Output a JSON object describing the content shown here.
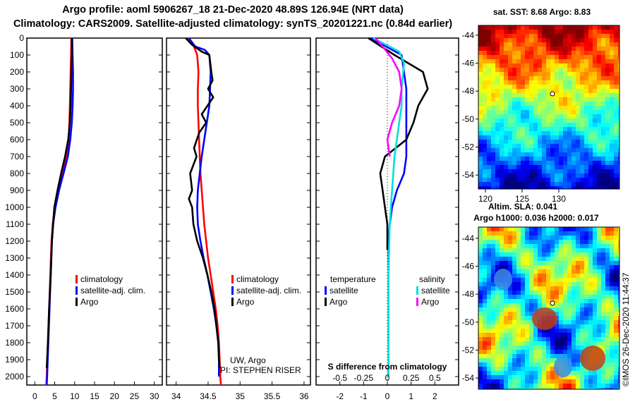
{
  "header": {
    "line1": "Argo profile: aoml 5906267_18 21-Dec-2020 48.89S 126.94E (NRT data)",
    "line2": "Climatology: CARS2009. Satellite-adjusted climatology: synTS_20201221.nc (0.84d earlier)"
  },
  "chart_data": [
    {
      "type": "line",
      "name": "temperature-profile",
      "xlabel": "",
      "ylabel": "",
      "xlim": [
        -2,
        32
      ],
      "ylim": [
        2050,
        0
      ],
      "y_inverted": true,
      "xticks": [
        0,
        5,
        10,
        15,
        20,
        25,
        30
      ],
      "yticks": [
        0,
        100,
        200,
        300,
        400,
        500,
        600,
        700,
        800,
        900,
        1000,
        1100,
        1200,
        1300,
        1400,
        1500,
        1600,
        1700,
        1800,
        1900,
        2000
      ],
      "legend": {
        "position": "lower-right",
        "entries": [
          "climatology",
          "satellite-adj. clim.",
          "Argo"
        ]
      },
      "series": [
        {
          "name": "climatology",
          "color": "#ff0000",
          "points": [
            [
              9.2,
              0
            ],
            [
              9.1,
              100
            ],
            [
              9.0,
              200
            ],
            [
              8.9,
              300
            ],
            [
              8.8,
              400
            ],
            [
              8.7,
              500
            ],
            [
              8.5,
              600
            ],
            [
              7.9,
              700
            ],
            [
              6.9,
              800
            ],
            [
              5.8,
              900
            ],
            [
              5.0,
              1000
            ],
            [
              4.5,
              1100
            ],
            [
              4.2,
              1200
            ],
            [
              3.9,
              1400
            ],
            [
              3.6,
              1600
            ],
            [
              3.3,
              1800
            ],
            [
              3.0,
              2000
            ],
            [
              2.9,
              2050
            ]
          ]
        },
        {
          "name": "satellite-adj. clim.",
          "color": "#0000ff",
          "points": [
            [
              9.4,
              0
            ],
            [
              9.5,
              100
            ],
            [
              9.6,
              200
            ],
            [
              9.6,
              300
            ],
            [
              9.5,
              400
            ],
            [
              9.3,
              500
            ],
            [
              8.9,
              600
            ],
            [
              8.3,
              700
            ],
            [
              7.2,
              800
            ],
            [
              6.1,
              900
            ],
            [
              5.2,
              1000
            ],
            [
              4.6,
              1100
            ],
            [
              4.3,
              1200
            ],
            [
              4.0,
              1400
            ],
            [
              3.7,
              1600
            ],
            [
              3.4,
              1800
            ],
            [
              3.1,
              2000
            ],
            [
              3.0,
              2050
            ]
          ]
        },
        {
          "name": "Argo",
          "color": "#000000",
          "points": [
            [
              9.3,
              0
            ],
            [
              9.3,
              100
            ],
            [
              9.2,
              200
            ],
            [
              9.1,
              300
            ],
            [
              9.0,
              400
            ],
            [
              8.8,
              500
            ],
            [
              8.4,
              600
            ],
            [
              7.6,
              700
            ],
            [
              6.6,
              800
            ],
            [
              5.7,
              900
            ],
            [
              4.9,
              1000
            ],
            [
              4.6,
              1100
            ],
            [
              4.3,
              1200
            ],
            [
              4.0,
              1400
            ],
            [
              3.6,
              1600
            ],
            [
              3.3,
              1800
            ],
            [
              3.0,
              1950
            ]
          ]
        }
      ]
    },
    {
      "type": "line",
      "name": "salinity-profile",
      "xlabel": "",
      "ylabel": "",
      "xlim": [
        33.85,
        36.1
      ],
      "ylim": [
        2050,
        0
      ],
      "y_inverted": true,
      "xticks": [
        34,
        34.5,
        35,
        35.5,
        36
      ],
      "legend": {
        "position": "lower-right",
        "entries": [
          "climatology",
          "satellite-adj. clim.",
          "Argo"
        ]
      },
      "annotations": [
        "UW, Argo",
        "PI: STEPHEN RISER"
      ],
      "series": [
        {
          "name": "climatology",
          "color": "#ff0000",
          "points": [
            [
              34.18,
              0
            ],
            [
              34.28,
              50
            ],
            [
              34.33,
              100
            ],
            [
              34.35,
              200
            ],
            [
              34.34,
              300
            ],
            [
              34.34,
              400
            ],
            [
              34.35,
              500
            ],
            [
              34.36,
              600
            ],
            [
              34.37,
              700
            ],
            [
              34.38,
              800
            ],
            [
              34.4,
              900
            ],
            [
              34.42,
              1000
            ],
            [
              34.44,
              1100
            ],
            [
              34.47,
              1200
            ],
            [
              34.5,
              1300
            ],
            [
              34.54,
              1400
            ],
            [
              34.58,
              1500
            ],
            [
              34.62,
              1600
            ],
            [
              34.65,
              1700
            ],
            [
              34.67,
              1800
            ],
            [
              34.68,
              1900
            ],
            [
              34.69,
              2000
            ],
            [
              34.7,
              2050
            ]
          ]
        },
        {
          "name": "satellite-adj. clim.",
          "color": "#0000ff",
          "points": [
            [
              34.2,
              0
            ],
            [
              34.3,
              50
            ],
            [
              34.45,
              70
            ],
            [
              34.52,
              100
            ],
            [
              34.54,
              200
            ],
            [
              34.53,
              300
            ],
            [
              34.52,
              400
            ],
            [
              34.48,
              500
            ],
            [
              34.44,
              600
            ],
            [
              34.4,
              700
            ],
            [
              34.37,
              800
            ],
            [
              34.34,
              900
            ],
            [
              34.33,
              1000
            ],
            [
              34.34,
              1100
            ],
            [
              34.38,
              1200
            ],
            [
              34.43,
              1300
            ],
            [
              34.49,
              1400
            ],
            [
              34.54,
              1500
            ],
            [
              34.59,
              1600
            ],
            [
              34.63,
              1700
            ],
            [
              34.66,
              1800
            ],
            [
              34.67,
              1900
            ],
            [
              34.67,
              2000
            ]
          ]
        },
        {
          "name": "Argo",
          "color": "#000000",
          "points": [
            [
              34.15,
              0
            ],
            [
              34.25,
              40
            ],
            [
              34.4,
              80
            ],
            [
              34.52,
              100
            ],
            [
              34.55,
              200
            ],
            [
              34.57,
              250
            ],
            [
              34.5,
              300
            ],
            [
              34.58,
              350
            ],
            [
              34.4,
              450
            ],
            [
              34.47,
              500
            ],
            [
              34.36,
              560
            ],
            [
              34.28,
              650
            ],
            [
              34.32,
              700
            ],
            [
              34.22,
              800
            ],
            [
              34.25,
              900
            ],
            [
              34.2,
              950
            ],
            [
              34.25,
              1000
            ],
            [
              34.27,
              1100
            ],
            [
              34.33,
              1200
            ],
            [
              34.42,
              1300
            ],
            [
              34.49,
              1400
            ],
            [
              34.55,
              1500
            ],
            [
              34.6,
              1600
            ],
            [
              34.63,
              1700
            ],
            [
              34.66,
              1800
            ],
            [
              34.67,
              1900
            ],
            [
              34.68,
              1950
            ]
          ]
        }
      ]
    },
    {
      "type": "line",
      "name": "difference-from-climatology",
      "xlabel": "S difference from climatology",
      "xlim": [
        -3,
        3
      ],
      "ylim": [
        2050,
        0
      ],
      "y_inverted": true,
      "xticks": [
        -2,
        -1,
        0,
        1,
        2
      ],
      "secondary_xticks": [
        -0.5,
        -0.25,
        0,
        0.25,
        0.5
      ],
      "legend": {
        "position": "lower",
        "groups": [
          {
            "title": "temperature",
            "entries": [
              "satellite",
              "Argo"
            ]
          },
          {
            "title": "salinity",
            "entries": [
              "satellite",
              "Argo"
            ]
          }
        ]
      },
      "series": [
        {
          "name": "temperature satellite",
          "color": "#0000ff",
          "points": [
            [
              -0.7,
              0
            ],
            [
              0.6,
              100
            ],
            [
              0.8,
              300
            ],
            [
              0.8,
              500
            ],
            [
              0.8,
              700
            ],
            [
              0.7,
              800
            ],
            [
              0.4,
              900
            ],
            [
              0.2,
              1000
            ],
            [
              0.1,
              1100
            ],
            [
              0.05,
              1200
            ],
            [
              0.05,
              1400
            ],
            [
              0.05,
              1600
            ],
            [
              0.05,
              1800
            ],
            [
              0.05,
              2000
            ]
          ]
        },
        {
          "name": "temperature Argo",
          "color": "#000000",
          "points": [
            [
              -0.8,
              0
            ],
            [
              0.3,
              100
            ],
            [
              1.5,
              200
            ],
            [
              1.7,
              300
            ],
            [
              1.3,
              400
            ],
            [
              1.1,
              500
            ],
            [
              0.8,
              600
            ],
            [
              -0.1,
              700
            ],
            [
              -0.3,
              800
            ],
            [
              -0.2,
              900
            ],
            [
              -0.1,
              1000
            ],
            [
              0.0,
              1100
            ],
            [
              0.0,
              1200
            ],
            [
              0.0,
              1250
            ]
          ]
        },
        {
          "name": "salinity satellite",
          "color": "#00e0e0",
          "points": [
            [
              -0.6,
              0
            ],
            [
              0.5,
              80
            ],
            [
              0.7,
              150
            ],
            [
              0.6,
              300
            ],
            [
              0.6,
              400
            ],
            [
              0.5,
              500
            ],
            [
              0.4,
              600
            ],
            [
              0.3,
              700
            ],
            [
              0.25,
              800
            ],
            [
              0.2,
              900
            ],
            [
              0.15,
              1000
            ],
            [
              0.1,
              1100
            ],
            [
              0.08,
              1200
            ],
            [
              0.05,
              1400
            ],
            [
              0.05,
              1600
            ],
            [
              0.05,
              1800
            ],
            [
              0.05,
              2000
            ]
          ]
        },
        {
          "name": "salinity Argo",
          "color": "#ff00ff",
          "points": [
            [
              -0.5,
              0
            ],
            [
              -0.2,
              50
            ],
            [
              0.2,
              120
            ],
            [
              0.5,
              200
            ],
            [
              0.6,
              300
            ],
            [
              0.5,
              400
            ],
            [
              0.2,
              500
            ],
            [
              0.0,
              600
            ],
            [
              0.1,
              700
            ]
          ]
        }
      ]
    },
    {
      "type": "heatmap",
      "name": "sst-map",
      "title": "sat. SST: 8.68 Argo: 8.83",
      "xticks": [
        120,
        125,
        130
      ],
      "yticks": [
        -44,
        -46,
        -48,
        -50,
        -52,
        -54
      ]
    },
    {
      "type": "heatmap",
      "name": "sla-map",
      "title": "Altim. SLA: 0.041",
      "subtitle": "Argo h1000: 0.036 h2000: 0.017",
      "yticks": [
        -44,
        -46,
        -48,
        -50,
        -52,
        -54
      ]
    }
  ],
  "labels": {
    "legend_climatology": "climatology",
    "legend_satadj": "satellite-adj. clim.",
    "legend_argo": "Argo",
    "diff_temperature": "temperature",
    "diff_salinity": "salinity",
    "diff_satellite": "satellite",
    "diff_argo": "Argo",
    "attribution_1": "UW, Argo",
    "attribution_2": "PI: STEPHEN RISER",
    "watermark": "©IMOS 26-Dec-2020 11:44:37"
  }
}
